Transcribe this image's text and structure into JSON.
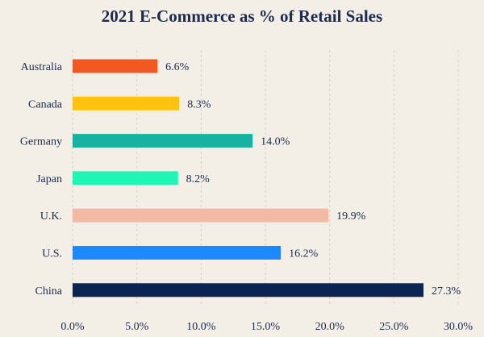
{
  "chart_data": {
    "type": "bar",
    "orientation": "horizontal",
    "title": "2021 E-Commerce as % of Retail Sales",
    "categories": [
      "Australia",
      "Canada",
      "Germany",
      "Japan",
      "U.K.",
      "U.S.",
      "China"
    ],
    "values": [
      6.6,
      8.3,
      14.0,
      8.2,
      19.9,
      16.2,
      27.3
    ],
    "value_labels": [
      "6.6%",
      "8.3%",
      "14.0%",
      "8.2%",
      "19.9%",
      "16.2%",
      "27.3%"
    ],
    "colors": [
      "#f05a22",
      "#ffc20e",
      "#16b3a2",
      "#1ff5b4",
      "#f2b9a5",
      "#1e88ff",
      "#0c2452"
    ],
    "xlim": [
      0,
      30
    ],
    "xticks": [
      0,
      5,
      10,
      15,
      20,
      25,
      30
    ],
    "xtick_labels": [
      "0.0%",
      "5.0%",
      "10.0%",
      "15.0%",
      "20.0%",
      "25.0%",
      "30.0%"
    ],
    "xlabel": "",
    "ylabel": "",
    "grid": true,
    "legend": "none"
  }
}
